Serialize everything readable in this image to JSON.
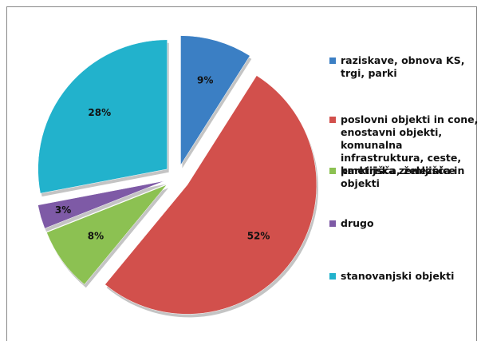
{
  "chart_data": {
    "type": "pie",
    "categories": [
      "raziskave, obnova KS, trgi, parki",
      "poslovni objekti in cone, enostavni objekti, komunalna infrastruktura, ceste, parkirišča,  železnice",
      "kmetijska zemljišča in objekti",
      "drugo",
      "stanovanjski objekti"
    ],
    "values": [
      9,
      52,
      8,
      3,
      28
    ],
    "value_labels": [
      "9%",
      "52%",
      "8%",
      "3%",
      "28%"
    ],
    "colors": [
      "#3b7fc4",
      "#d2504c",
      "#8cc152",
      "#7e5aa6",
      "#22b2cc"
    ],
    "legend": "right"
  }
}
